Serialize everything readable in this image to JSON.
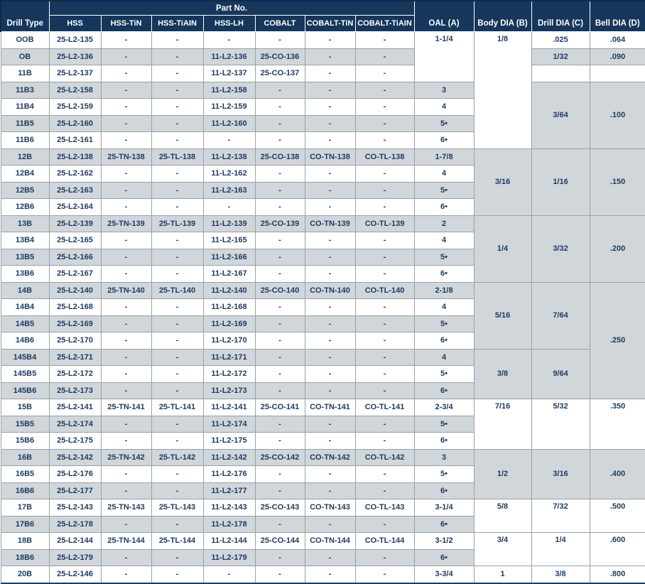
{
  "colors": {
    "header_bg": "#16365c",
    "header_text": "#ffffff",
    "row_stripe": "#d1d6da",
    "row_white": "#ffffff",
    "cell_text": "#1d3c63",
    "grid_border": "#97a1aa"
  },
  "table": {
    "header": {
      "drill_type": "Drill Type",
      "part_no_label": "Part No.",
      "part_columns": [
        "HSS",
        "HSS-TiN",
        "HSS-TiAIN",
        "HSS-LH",
        "COBALT",
        "COBALT-TiN",
        "COBALT-TiAIN"
      ],
      "right_columns": [
        "OAL (A)",
        "Body DIA (B)",
        "Drill DIA (C)",
        "Bell DIA (D)"
      ]
    },
    "rows": [
      {
        "type": "OOB",
        "parts": [
          "25-L2-135",
          "-",
          "-",
          "-",
          "-",
          "-",
          "-"
        ],
        "oal": {
          "t": "1-1/4",
          "rs": 3,
          "va": "top"
        },
        "body": {
          "t": "1/8",
          "rs": 7,
          "va": "top"
        },
        "drill": ".025",
        "bell": ".064"
      },
      {
        "type": "OB",
        "parts": [
          "25-L2-136",
          "-",
          "-",
          "11-L2-136",
          "25-CO-136",
          "-",
          "-"
        ],
        "oal": null,
        "body": null,
        "drill": "1/32",
        "bell": ".090"
      },
      {
        "type": "11B",
        "parts": [
          "25-L2-137",
          "-",
          "-",
          "11-L2-137",
          "25-CO-137",
          "-",
          "-"
        ],
        "oal": null,
        "body": null,
        "drill": "",
        "bell": ""
      },
      {
        "type": "11B3",
        "parts": [
          "25-L2-158",
          "-",
          "-",
          "11-L2-158",
          "-",
          "-",
          "-"
        ],
        "oal": "3",
        "body": null,
        "drill": {
          "t": "3/64",
          "rs": 4,
          "va": "middle"
        },
        "bell": {
          "t": ".100",
          "rs": 4,
          "va": "middle"
        }
      },
      {
        "type": "11B4",
        "parts": [
          "25-L2-159",
          "-",
          "-",
          "11-L2-159",
          "-",
          "-",
          "-"
        ],
        "oal": "4",
        "body": null,
        "drill": null,
        "bell": null
      },
      {
        "type": "11B5",
        "parts": [
          "25-L2-160",
          "-",
          "-",
          "11-L2-160",
          "-",
          "-",
          "-"
        ],
        "oal": "5•",
        "body": null,
        "drill": null,
        "bell": null
      },
      {
        "type": "11B6",
        "parts": [
          "25-L2-161",
          "-",
          "-",
          "-",
          "-",
          "-",
          "-"
        ],
        "oal": "6•",
        "body": null,
        "drill": null,
        "bell": null
      },
      {
        "type": "12B",
        "parts": [
          "25-L2-138",
          "25-TN-138",
          "25-TL-138",
          "11-L2-138",
          "25-CO-138",
          "CO-TN-138",
          "CO-TL-138"
        ],
        "oal": "1-7/8",
        "body": {
          "t": "3/16",
          "rs": 4,
          "va": "middle"
        },
        "drill": {
          "t": "1/16",
          "rs": 4,
          "va": "middle"
        },
        "bell": {
          "t": ".150",
          "rs": 4,
          "va": "middle"
        }
      },
      {
        "type": "12B4",
        "parts": [
          "25-L2-162",
          "-",
          "-",
          "11-L2-162",
          "-",
          "-",
          "-"
        ],
        "oal": "4",
        "body": null,
        "drill": null,
        "bell": null
      },
      {
        "type": "12B5",
        "parts": [
          "25-L2-163",
          "-",
          "-",
          "11-L2-163",
          "-",
          "-",
          "-"
        ],
        "oal": "5•",
        "body": null,
        "drill": null,
        "bell": null
      },
      {
        "type": "12B6",
        "parts": [
          "25-L2-164",
          "-",
          "-",
          "-",
          "-",
          "-",
          "-"
        ],
        "oal": "6•",
        "body": null,
        "drill": null,
        "bell": null
      },
      {
        "type": "13B",
        "parts": [
          "25-L2-139",
          "25-TN-139",
          "25-TL-139",
          "11-L2-139",
          "25-CO-139",
          "CO-TN-139",
          "CO-TL-139"
        ],
        "oal": "2",
        "body": {
          "t": "1/4",
          "rs": 4,
          "va": "middle"
        },
        "drill": {
          "t": "3/32",
          "rs": 4,
          "va": "middle"
        },
        "bell": {
          "t": ".200",
          "rs": 4,
          "va": "middle"
        }
      },
      {
        "type": "13B4",
        "parts": [
          "25-L2-165",
          "-",
          "-",
          "11-L2-165",
          "-",
          "-",
          "-"
        ],
        "oal": "4",
        "body": null,
        "drill": null,
        "bell": null
      },
      {
        "type": "13B5",
        "parts": [
          "25-L2-166",
          "-",
          "-",
          "11-L2-166",
          "-",
          "-",
          "-"
        ],
        "oal": "5•",
        "body": null,
        "drill": null,
        "bell": null
      },
      {
        "type": "13B6",
        "parts": [
          "25-L2-167",
          "-",
          "-",
          "11-L2-167",
          "-",
          "-",
          "-"
        ],
        "oal": "6•",
        "body": null,
        "drill": null,
        "bell": null
      },
      {
        "type": "14B",
        "parts": [
          "25-L2-140",
          "25-TN-140",
          "25-TL-140",
          "11-L2-140",
          "25-CO-140",
          "CO-TN-140",
          "CO-TL-140"
        ],
        "oal": "2-1/8",
        "body": {
          "t": "5/16",
          "rs": 4,
          "va": "middle"
        },
        "drill": {
          "t": "7/64",
          "rs": 4,
          "va": "middle"
        },
        "bell": {
          "t": ".250",
          "rs": 7,
          "va": "middle"
        }
      },
      {
        "type": "14B4",
        "parts": [
          "25-L2-168",
          "-",
          "-",
          "11-L2-168",
          "-",
          "-",
          "-"
        ],
        "oal": "4",
        "body": null,
        "drill": null,
        "bell": null
      },
      {
        "type": "14B5",
        "parts": [
          "25-L2-169",
          "-",
          "-",
          "11-L2-169",
          "-",
          "-",
          "-"
        ],
        "oal": "5•",
        "body": null,
        "drill": null,
        "bell": null
      },
      {
        "type": "14B6",
        "parts": [
          "25-L2-170",
          "-",
          "-",
          "11-L2-170",
          "-",
          "-",
          "-"
        ],
        "oal": "6•",
        "body": null,
        "drill": null,
        "bell": null
      },
      {
        "type": "145B4",
        "parts": [
          "25-L2-171",
          "-",
          "-",
          "11-L2-171",
          "-",
          "-",
          "-"
        ],
        "oal": "4",
        "body": {
          "t": "3/8",
          "rs": 3,
          "va": "middle"
        },
        "drill": {
          "t": "9/64",
          "rs": 3,
          "va": "middle"
        },
        "bell": null
      },
      {
        "type": "145B5",
        "parts": [
          "25-L2-172",
          "-",
          "-",
          "11-L2-172",
          "-",
          "-",
          "-"
        ],
        "oal": "5•",
        "body": null,
        "drill": null,
        "bell": null
      },
      {
        "type": "145B6",
        "parts": [
          "25-L2-173",
          "-",
          "-",
          "11-L2-173",
          "-",
          "-",
          "-"
        ],
        "oal": "6•",
        "body": null,
        "drill": null,
        "bell": null
      },
      {
        "type": "15B",
        "parts": [
          "25-L2-141",
          "25-TN-141",
          "25-TL-141",
          "11-L2-141",
          "25-CO-141",
          "CO-TN-141",
          "CO-TL-141"
        ],
        "oal": "2-3/4",
        "body": {
          "t": "7/16",
          "rs": 3,
          "va": "top"
        },
        "drill": {
          "t": "5/32",
          "rs": 3,
          "va": "top"
        },
        "bell": {
          "t": ".350",
          "rs": 3,
          "va": "top"
        }
      },
      {
        "type": "15B5",
        "parts": [
          "25-L2-174",
          "-",
          "-",
          "11-L2-174",
          "-",
          "-",
          "-"
        ],
        "oal": "5•",
        "body": null,
        "drill": null,
        "bell": null
      },
      {
        "type": "15B6",
        "parts": [
          "25-L2-175",
          "-",
          "-",
          "11-L2-175",
          "-",
          "-",
          "-"
        ],
        "oal": "6•",
        "body": null,
        "drill": null,
        "bell": null
      },
      {
        "type": "16B",
        "parts": [
          "25-L2-142",
          "25-TN-142",
          "25-TL-142",
          "11-L2-142",
          "25-CO-142",
          "CO-TN-142",
          "CO-TL-142"
        ],
        "oal": "3",
        "body": {
          "t": "1/2",
          "rs": 3,
          "va": "middle"
        },
        "drill": {
          "t": "3/16",
          "rs": 3,
          "va": "middle"
        },
        "bell": {
          "t": ".400",
          "rs": 3,
          "va": "middle"
        }
      },
      {
        "type": "16B5",
        "parts": [
          "25-L2-176",
          "-",
          "-",
          "11-L2-176",
          "-",
          "-",
          "-"
        ],
        "oal": "5•",
        "body": null,
        "drill": null,
        "bell": null
      },
      {
        "type": "16B6",
        "parts": [
          "25-L2-177",
          "-",
          "-",
          "11-L2-177",
          "-",
          "-",
          "-"
        ],
        "oal": "6•",
        "body": null,
        "drill": null,
        "bell": null
      },
      {
        "type": "17B",
        "parts": [
          "25-L2-143",
          "25-TN-143",
          "25-TL-143",
          "11-L2-143",
          "25-CO-143",
          "CO-TN-143",
          "CO-TL-143"
        ],
        "oal": "3-1/4",
        "body": {
          "t": "5/8",
          "rs": 2,
          "va": "top"
        },
        "drill": {
          "t": "7/32",
          "rs": 2,
          "va": "top"
        },
        "bell": {
          "t": ".500",
          "rs": 2,
          "va": "top"
        }
      },
      {
        "type": "17B6",
        "parts": [
          "25-L2-178",
          "-",
          "-",
          "11-L2-178",
          "-",
          "-",
          "-"
        ],
        "oal": "6•",
        "body": null,
        "drill": null,
        "bell": null
      },
      {
        "type": "18B",
        "parts": [
          "25-L2-144",
          "25-TN-144",
          "25-TL-144",
          "11-L2-144",
          "25-CO-144",
          "CO-TN-144",
          "CO-TL-144"
        ],
        "oal": "3-1/2",
        "body": {
          "t": "3/4",
          "rs": 2,
          "va": "top"
        },
        "drill": {
          "t": "1/4",
          "rs": 2,
          "va": "top"
        },
        "bell": {
          "t": ".600",
          "rs": 2,
          "va": "top"
        }
      },
      {
        "type": "18B6",
        "parts": [
          "25-L2-179",
          "-",
          "-",
          "11-L2-179",
          "-",
          "-",
          "-"
        ],
        "oal": "6•",
        "body": null,
        "drill": null,
        "bell": null
      },
      {
        "type": "20B",
        "parts": [
          "25-L2-146",
          "-",
          "-",
          "-",
          "-",
          "-",
          "-"
        ],
        "oal": "3-3/4",
        "body": "1",
        "drill": "3/8",
        "bell": ".800"
      }
    ]
  }
}
